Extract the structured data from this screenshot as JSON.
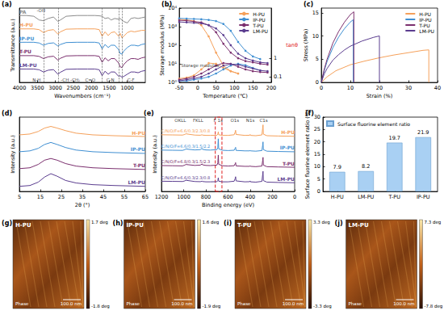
{
  "chart_data": [
    {
      "type": "line",
      "label": "(a)",
      "xlabel": "Wavenumbers (cm⁻¹)",
      "ylabel": "Transmittance (a.u.)",
      "xlim": [
        4000,
        500
      ],
      "xticks": [
        4000,
        3500,
        3000,
        2500,
        2000,
        1500,
        1000
      ],
      "ylim": [
        0,
        5
      ],
      "tick_labels": "x",
      "legend": "inline",
      "x": [
        4000,
        3800,
        3600,
        3450,
        3330,
        3200,
        3050,
        2930,
        2860,
        2700,
        2400,
        2100,
        1900,
        1780,
        1700,
        1620,
        1530,
        1450,
        1350,
        1240,
        1200,
        1150,
        1100,
        1000,
        900,
        800,
        700,
        600,
        500
      ],
      "series": [
        {
          "name": "PA",
          "color": "#8c8c8c",
          "values": [
            4.5,
            4.5,
            4.45,
            4.2,
            4.15,
            4.3,
            4.4,
            4.1,
            4.2,
            4.45,
            4.5,
            4.5,
            4.5,
            4.48,
            4.45,
            4.3,
            4.35,
            4.2,
            4.3,
            4.25,
            4.3,
            4.2,
            4.1,
            4.0,
            4.3,
            4.35,
            4.3,
            4.35,
            4.4
          ]
        },
        {
          "name": "H-PU",
          "color": "#f5a05a",
          "values": [
            3.6,
            3.6,
            3.6,
            3.55,
            3.35,
            3.5,
            3.55,
            3.25,
            3.4,
            3.58,
            3.6,
            3.6,
            3.6,
            3.55,
            3.1,
            3.4,
            3.15,
            3.35,
            3.4,
            3.1,
            3.3,
            3.0,
            3.1,
            3.35,
            3.45,
            3.4,
            3.45,
            3.5,
            3.5
          ]
        },
        {
          "name": "IP-PU",
          "color": "#3f8fd2",
          "values": [
            2.7,
            2.7,
            2.7,
            2.65,
            2.5,
            2.62,
            2.66,
            2.45,
            2.55,
            2.68,
            2.7,
            2.7,
            2.7,
            2.65,
            2.25,
            2.55,
            2.35,
            2.5,
            2.5,
            2.2,
            1.95,
            1.9,
            2.1,
            2.35,
            2.5,
            2.5,
            2.45,
            2.55,
            2.6
          ]
        },
        {
          "name": "T-PU",
          "color": "#7b2f6e",
          "values": [
            1.8,
            1.8,
            1.8,
            1.75,
            1.6,
            1.72,
            1.76,
            1.5,
            1.62,
            1.78,
            1.8,
            1.8,
            1.8,
            1.75,
            1.35,
            1.65,
            1.45,
            1.6,
            1.6,
            1.3,
            1.05,
            1.0,
            1.2,
            1.45,
            1.6,
            1.6,
            1.55,
            1.65,
            1.7
          ]
        },
        {
          "name": "LM-PU",
          "color": "#5b3d8f",
          "values": [
            0.9,
            0.9,
            0.9,
            0.85,
            0.7,
            0.82,
            0.86,
            0.55,
            0.68,
            0.88,
            0.9,
            0.9,
            0.9,
            0.85,
            0.45,
            0.75,
            0.55,
            0.7,
            0.7,
            0.4,
            0.45,
            0.35,
            0.4,
            0.55,
            0.7,
            0.7,
            0.65,
            0.75,
            0.8
          ]
        }
      ],
      "annotations": [
        {
          "text": "-OH",
          "x": 3400,
          "y": 4.85
        },
        {
          "text": "N-H",
          "x": 3520,
          "y": 0.15
        },
        {
          "text": "-CH -CH₂",
          "x": 2580,
          "y": 0.15
        },
        {
          "text": "C=O",
          "x": 2030,
          "y": 0.15
        },
        {
          "text": "C-N",
          "x": 1470,
          "y": 0.15
        },
        {
          "text": "C-F",
          "x": 900,
          "y": 0.15
        }
      ],
      "peak_lines": [
        3330,
        2920,
        1700,
        1240,
        1150
      ]
    },
    {
      "type": "line",
      "label": "(b)",
      "xlabel": "Temperature (℃)",
      "ylabel": "Storage modulus (MPa)",
      "y2label": "tanθ",
      "xlim": [
        -50,
        200
      ],
      "xticks": [
        -50,
        0,
        50,
        100,
        150,
        200
      ],
      "ylim": [
        1,
        10000
      ],
      "yticks": [
        {
          "value": 1,
          "label": "10⁰"
        },
        {
          "value": 10,
          "label": "10¹"
        },
        {
          "value": 100,
          "label": "10²"
        },
        {
          "value": 1000,
          "label": "10³"
        },
        {
          "value": 10000,
          "label": "10⁴"
        }
      ],
      "y2lim": [
        0.05,
        500
      ],
      "y2ticks": [
        0.1,
        1
      ],
      "log": "y",
      "marker": "circle",
      "legend": "upper right",
      "x": [
        -50,
        -30,
        -10,
        10,
        30,
        50,
        70,
        90,
        110,
        130,
        150,
        170,
        190
      ],
      "series": [
        {
          "name": "H-PU",
          "color": "#f5a05a",
          "values": [
            2500,
            2300,
            2000,
            1200,
            300,
            40,
            8,
            4,
            3,
            null,
            null,
            null,
            null
          ]
        },
        {
          "name": "IP-PU",
          "color": "#3f8fd2",
          "values": [
            2800,
            2700,
            2600,
            2500,
            2300,
            2000,
            1400,
            600,
            150,
            50,
            25,
            18,
            null
          ]
        },
        {
          "name": "T-PU",
          "color": "#7b2f6e",
          "values": [
            2200,
            2100,
            1900,
            1700,
            1200,
            500,
            120,
            40,
            20,
            14,
            12,
            10,
            9
          ]
        },
        {
          "name": "LM-PU",
          "color": "#5b3d8f",
          "values": [
            1800,
            1700,
            1600,
            1500,
            1200,
            800,
            350,
            100,
            35,
            20,
            15,
            12,
            11
          ]
        },
        {
          "name": "H-PU",
          "color": "#f5a05a",
          "axis": "y2",
          "values": [
            0.08,
            0.09,
            0.12,
            0.25,
            0.55,
            0.5,
            0.3,
            0.2,
            0.15,
            null,
            null,
            null,
            null
          ]
        },
        {
          "name": "IP-PU",
          "color": "#3f8fd2",
          "axis": "y2",
          "values": [
            0.06,
            0.06,
            0.07,
            0.08,
            0.1,
            0.15,
            0.25,
            0.4,
            0.5,
            0.42,
            0.3,
            0.22,
            null
          ]
        },
        {
          "name": "T-PU",
          "color": "#7b2f6e",
          "axis": "y2",
          "values": [
            0.07,
            0.08,
            0.1,
            0.15,
            0.25,
            0.4,
            0.55,
            0.5,
            0.35,
            0.25,
            0.2,
            0.18,
            0.17
          ]
        },
        {
          "name": "LM-PU",
          "color": "#5b3d8f",
          "axis": "y2",
          "values": [
            0.06,
            0.07,
            0.08,
            0.1,
            0.15,
            0.25,
            0.4,
            0.48,
            0.45,
            0.35,
            0.28,
            0.22,
            0.2
          ]
        }
      ],
      "annotations": [
        {
          "text": "Storage modulus",
          "x": -45,
          "y": 8
        }
      ]
    },
    {
      "type": "line",
      "label": "(c)",
      "xlabel": "Strain (%)",
      "ylabel": "Stress (MPa)",
      "xlim": [
        0,
        40
      ],
      "xticks": [
        0,
        10,
        20,
        30,
        40
      ],
      "ylim": [
        0,
        16
      ],
      "yticks": [
        0,
        5,
        10,
        15
      ],
      "legend": "upper right",
      "series": [
        {
          "name": "H-PU",
          "color": "#f5a05a",
          "x": [
            0,
            2,
            5,
            10,
            15,
            20,
            25,
            30,
            35,
            37,
            37
          ],
          "values": [
            0,
            1.2,
            2.5,
            3.8,
            4.6,
            5.3,
            5.9,
            6.4,
            6.9,
            7.0,
            0
          ]
        },
        {
          "name": "IP-PU",
          "color": "#3f8fd2",
          "x": [
            0,
            1,
            2,
            4,
            6,
            8,
            10,
            11,
            11
          ],
          "values": [
            0,
            2.5,
            4.5,
            7.5,
            9.8,
            11.6,
            13.0,
            13.5,
            0
          ]
        },
        {
          "name": "T-PU",
          "color": "#7b2f6e",
          "x": [
            0,
            1,
            2,
            4,
            6,
            8,
            10,
            11.2,
            11.2
          ],
          "values": [
            0,
            2.8,
            5,
            8.5,
            11,
            13,
            14.6,
            15.2,
            0
          ]
        },
        {
          "name": "LM-PU",
          "color": "#5b3d8f",
          "x": [
            0,
            1,
            2,
            4,
            6,
            8,
            10,
            14,
            18,
            20,
            20
          ],
          "values": [
            0,
            1.8,
            3,
            4.8,
            6,
            7,
            7.8,
            8.9,
            9.7,
            10,
            0
          ]
        }
      ]
    },
    {
      "type": "line",
      "label": "(d)",
      "xlabel": "2θ (°)",
      "ylabel": "Intensity (a.u.)",
      "xlim": [
        5,
        65
      ],
      "xticks": [
        5,
        15,
        25,
        35,
        45,
        55,
        65
      ],
      "ylim": [
        0,
        4.4
      ],
      "tick_labels": "x",
      "legend": "inline",
      "x": [
        5,
        10,
        14,
        17,
        20,
        23,
        27,
        32,
        40,
        50,
        65
      ],
      "series": [
        {
          "name": "H-PU",
          "color": "#f5a05a",
          "values": [
            3.35,
            3.4,
            3.55,
            3.75,
            3.85,
            3.75,
            3.6,
            3.45,
            3.35,
            3.3,
            3.25
          ]
        },
        {
          "name": "IP-PU",
          "color": "#3f8fd2",
          "values": [
            2.35,
            2.4,
            2.55,
            2.78,
            2.9,
            2.78,
            2.6,
            2.45,
            2.35,
            2.3,
            2.25
          ]
        },
        {
          "name": "T-PU",
          "color": "#7b2f6e",
          "values": [
            1.35,
            1.4,
            1.6,
            1.85,
            1.95,
            1.85,
            1.65,
            1.5,
            1.4,
            1.35,
            1.3
          ]
        },
        {
          "name": "LM-PU",
          "color": "#5b3d8f",
          "values": [
            0.3,
            0.35,
            0.55,
            0.85,
            1.05,
            0.9,
            0.65,
            0.5,
            0.4,
            0.35,
            0.3
          ]
        }
      ]
    },
    {
      "type": "line",
      "label": "(e)",
      "xlabel": "Binding energy (eV)",
      "ylabel": "Intensity (a.u.)",
      "xlim": [
        1200,
        0
      ],
      "xticks": [
        1200,
        1000,
        800,
        600,
        400,
        200,
        0
      ],
      "ylim": [
        0,
        4.8
      ],
      "tick_labels": "x",
      "legend": "inline",
      "x": [
        1200,
        1100,
        1010,
        990,
        980,
        900,
        850,
        835,
        830,
        800,
        760,
        700,
        692,
        688,
        684,
        650,
        600,
        545,
        535,
        532,
        528,
        450,
        405,
        401,
        398,
        350,
        295,
        288,
        285,
        282,
        250,
        150,
        0
      ],
      "series": [
        {
          "name": "H-PU",
          "color": "#f5a05a",
          "composition": "C/N/O/F=6.6/0.3/2.3/0.8",
          "values": [
            3.66,
            3.65,
            3.64,
            3.68,
            3.72,
            3.64,
            3.63,
            3.66,
            3.64,
            3.62,
            3.62,
            3.63,
            3.7,
            3.85,
            3.66,
            3.62,
            3.62,
            3.66,
            3.85,
            3.95,
            3.68,
            3.62,
            3.63,
            3.68,
            3.62,
            3.6,
            3.65,
            4.1,
            4.3,
            3.7,
            3.6,
            3.58,
            3.56
          ]
        },
        {
          "name": "IP-PU",
          "color": "#3f8fd2",
          "composition": "C/N/O/F=6.6/0.3/1.5/2.2",
          "values": [
            2.67,
            2.66,
            2.65,
            2.7,
            2.74,
            2.68,
            2.7,
            2.78,
            2.72,
            2.68,
            2.67,
            2.7,
            2.85,
            3.4,
            2.75,
            2.66,
            2.64,
            2.66,
            2.8,
            2.85,
            2.65,
            2.62,
            2.62,
            2.66,
            2.62,
            2.6,
            2.64,
            3.0,
            3.2,
            2.7,
            2.6,
            2.58,
            2.56
          ]
        },
        {
          "name": "T-PU",
          "color": "#7b2f6e",
          "composition": "C/N/O/F=6.8/0.3/1.5/2.3",
          "values": [
            1.67,
            1.66,
            1.65,
            1.7,
            1.74,
            1.68,
            1.7,
            1.77,
            1.72,
            1.68,
            1.67,
            1.7,
            1.84,
            2.35,
            1.75,
            1.66,
            1.64,
            1.66,
            1.8,
            1.86,
            1.65,
            1.62,
            1.62,
            1.66,
            1.62,
            1.6,
            1.64,
            2.0,
            2.2,
            1.7,
            1.6,
            1.58,
            1.56
          ]
        },
        {
          "name": "LM-PU",
          "color": "#5b3d8f",
          "composition": "C/N/O/F=6.6/0.3/2.3/0.8",
          "values": [
            0.66,
            0.65,
            0.64,
            0.68,
            0.72,
            0.64,
            0.63,
            0.66,
            0.64,
            0.62,
            0.62,
            0.63,
            0.7,
            0.88,
            0.66,
            0.62,
            0.62,
            0.66,
            0.85,
            0.95,
            0.68,
            0.62,
            0.63,
            0.68,
            0.62,
            0.6,
            0.65,
            1.1,
            1.3,
            0.7,
            0.6,
            0.58,
            0.56
          ]
        }
      ],
      "annotations": [
        {
          "text": "OKLL",
          "x": 1030,
          "y": 4.6
        },
        {
          "text": "FKLL",
          "x": 870,
          "y": 4.6
        },
        {
          "text": "F 1s",
          "x": 690,
          "y": 4.6
        },
        {
          "text": "O1s",
          "x": 540,
          "y": 4.6
        },
        {
          "text": "N1s",
          "x": 400,
          "y": 4.6
        },
        {
          "text": "C1s",
          "x": 280,
          "y": 4.6
        }
      ],
      "highlight_range": [
        715,
        655
      ]
    },
    {
      "type": "bar",
      "label": "(f)",
      "ylabel": "Surface fluorine element ratio (%)",
      "categories": [
        "H-PU",
        "LM-PU",
        "T-PU",
        "IP-PU"
      ],
      "series": [
        {
          "name": "Surface fluorine element ratio",
          "color": "#a9d0f3",
          "values": [
            7.9,
            8.2,
            19.7,
            21.9
          ]
        }
      ],
      "ylim": [
        0,
        30
      ],
      "yticks": [
        0,
        5,
        10,
        15,
        20,
        25,
        30
      ],
      "legend": "upper left",
      "data_labels": true
    },
    {
      "type": "image",
      "label": "(g)",
      "title": "H-PU",
      "channel": "Phase",
      "scale": "100.0 nm",
      "colorbar": {
        "range": [
          -1.8,
          1.7
        ],
        "ticks": [
          {
            "value": 1.7,
            "label": "1.7 deg"
          },
          {
            "value": -1.8,
            "label": "-1.8 deg"
          }
        ]
      }
    },
    {
      "type": "image",
      "label": "(h)",
      "title": "IP-PU",
      "channel": "Phase",
      "scale": "100.0 nm",
      "colorbar": {
        "range": [
          -1.9,
          1.6
        ],
        "ticks": [
          {
            "value": 1.6,
            "label": "1.6 deg"
          },
          {
            "value": -1.9,
            "label": "-1.9 deg"
          }
        ]
      }
    },
    {
      "type": "image",
      "label": "(i)",
      "title": "T-PU",
      "channel": "Phase",
      "scale": "100.0 nm",
      "colorbar": {
        "range": [
          -3.3,
          3.3
        ],
        "ticks": [
          {
            "value": 3.3,
            "label": "3.3 deg"
          },
          {
            "value": -3.3,
            "label": "-3.3 deg"
          }
        ]
      }
    },
    {
      "type": "image",
      "label": "(j)",
      "title": "LM-PU",
      "channel": "Phase",
      "scale": "100.0 nm",
      "colorbar": {
        "range": [
          -7.8,
          7.3
        ],
        "ticks": [
          {
            "value": 7.3,
            "label": "7.3 deg"
          },
          {
            "value": -7.8,
            "label": "-7.8 deg"
          }
        ]
      }
    }
  ]
}
